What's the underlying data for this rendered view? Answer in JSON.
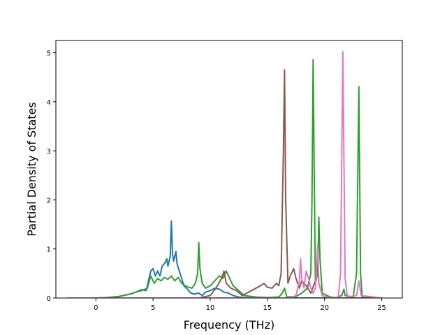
{
  "chart_data": {
    "type": "line",
    "title": "",
    "xlabel": "Frequency (THz)",
    "ylabel": "Partial Density of States",
    "xlim": [
      -3.5,
      26.8
    ],
    "ylim": [
      0,
      5.25
    ],
    "xticks": [
      0,
      5,
      10,
      15,
      20,
      25
    ],
    "yticks": [
      0,
      1,
      2,
      3,
      4,
      5
    ],
    "grid": false,
    "legend": "none",
    "series": [
      {
        "color": "#1f77b4",
        "points": [
          [
            -2.5,
            0
          ],
          [
            0,
            0
          ],
          [
            1,
            0.01
          ],
          [
            2,
            0.03
          ],
          [
            3,
            0.08
          ],
          [
            3.5,
            0.12
          ],
          [
            4,
            0.17
          ],
          [
            4.4,
            0.15
          ],
          [
            4.6,
            0.35
          ],
          [
            4.8,
            0.55
          ],
          [
            5.0,
            0.6
          ],
          [
            5.2,
            0.45
          ],
          [
            5.4,
            0.55
          ],
          [
            5.6,
            0.45
          ],
          [
            5.8,
            0.65
          ],
          [
            6.0,
            0.7
          ],
          [
            6.2,
            0.8
          ],
          [
            6.3,
            0.65
          ],
          [
            6.5,
            0.85
          ],
          [
            6.6,
            1.57
          ],
          [
            6.7,
            0.9
          ],
          [
            6.8,
            0.75
          ],
          [
            7.0,
            0.95
          ],
          [
            7.1,
            0.7
          ],
          [
            7.3,
            0.55
          ],
          [
            7.5,
            0.4
          ],
          [
            7.7,
            0.25
          ],
          [
            8.0,
            0.18
          ],
          [
            8.3,
            0.1
          ],
          [
            8.6,
            0.08
          ],
          [
            9.0,
            0.1
          ],
          [
            9.3,
            0.05
          ],
          [
            9.6,
            0.12
          ],
          [
            10.0,
            0.15
          ],
          [
            10.4,
            0.2
          ],
          [
            10.8,
            0.18
          ],
          [
            11.2,
            0.12
          ],
          [
            11.6,
            0.1
          ],
          [
            12.0,
            0.05
          ],
          [
            12.5,
            0.02
          ],
          [
            13.0,
            0.01
          ],
          [
            14.0,
            0
          ],
          [
            25.0,
            0
          ]
        ]
      },
      {
        "color": "#2ca02c",
        "points": [
          [
            -2.5,
            0
          ],
          [
            0,
            0
          ],
          [
            1,
            0.01
          ],
          [
            2,
            0.03
          ],
          [
            3,
            0.08
          ],
          [
            3.5,
            0.12
          ],
          [
            4,
            0.15
          ],
          [
            4.5,
            0.2
          ],
          [
            4.8,
            0.45
          ],
          [
            5.1,
            0.3
          ],
          [
            5.4,
            0.4
          ],
          [
            5.7,
            0.35
          ],
          [
            6.0,
            0.42
          ],
          [
            6.3,
            0.38
          ],
          [
            6.6,
            0.45
          ],
          [
            6.9,
            0.35
          ],
          [
            7.2,
            0.42
          ],
          [
            7.5,
            0.3
          ],
          [
            7.8,
            0.25
          ],
          [
            8.1,
            0.22
          ],
          [
            8.4,
            0.2
          ],
          [
            8.7,
            0.3
          ],
          [
            8.9,
            0.5
          ],
          [
            9.0,
            1.13
          ],
          [
            9.1,
            0.6
          ],
          [
            9.3,
            0.3
          ],
          [
            9.6,
            0.2
          ],
          [
            10.0,
            0.25
          ],
          [
            10.4,
            0.35
          ],
          [
            10.8,
            0.45
          ],
          [
            11.1,
            0.4
          ],
          [
            11.4,
            0.55
          ],
          [
            11.7,
            0.4
          ],
          [
            12.0,
            0.25
          ],
          [
            12.5,
            0.15
          ],
          [
            13.0,
            0.05
          ],
          [
            14.0,
            0.02
          ],
          [
            15.0,
            0.01
          ],
          [
            16.0,
            0.02
          ],
          [
            16.3,
            0.1
          ],
          [
            16.5,
            0.2
          ],
          [
            16.7,
            0.02
          ],
          [
            17.5,
            0.03
          ],
          [
            18.0,
            0.1
          ],
          [
            18.5,
            0.2
          ],
          [
            18.8,
            0.5
          ],
          [
            18.9,
            2.0
          ],
          [
            19.0,
            4.86
          ],
          [
            19.1,
            2.5
          ],
          [
            19.2,
            0.3
          ],
          [
            19.4,
            0.5
          ],
          [
            19.5,
            1.65
          ],
          [
            19.6,
            0.8
          ],
          [
            19.8,
            0.1
          ],
          [
            20.5,
            0.02
          ],
          [
            21.0,
            0.01
          ],
          [
            21.5,
            0.05
          ],
          [
            21.7,
            0.18
          ],
          [
            21.8,
            0.05
          ],
          [
            22.5,
            0.02
          ],
          [
            22.8,
            0.5
          ],
          [
            23.0,
            4.31
          ],
          [
            23.15,
            0.5
          ],
          [
            23.3,
            0.01
          ],
          [
            25.0,
            0
          ]
        ]
      },
      {
        "color": "#8c564b",
        "points": [
          [
            -2.5,
            0
          ],
          [
            9.0,
            0
          ],
          [
            10.0,
            0.05
          ],
          [
            10.5,
            0.2
          ],
          [
            11.0,
            0.4
          ],
          [
            11.2,
            0.55
          ],
          [
            11.4,
            0.3
          ],
          [
            11.8,
            0.2
          ],
          [
            12.3,
            0.15
          ],
          [
            12.8,
            0.05
          ],
          [
            13.2,
            0.1
          ],
          [
            13.6,
            0.15
          ],
          [
            14.0,
            0.2
          ],
          [
            14.4,
            0.25
          ],
          [
            14.7,
            0.3
          ],
          [
            15.0,
            0.22
          ],
          [
            15.4,
            0.2
          ],
          [
            15.8,
            0.3
          ],
          [
            16.0,
            0.25
          ],
          [
            16.2,
            0.5
          ],
          [
            16.4,
            3.0
          ],
          [
            16.5,
            4.65
          ],
          [
            16.6,
            2.0
          ],
          [
            16.8,
            0.3
          ],
          [
            17.0,
            0.45
          ],
          [
            17.3,
            0.6
          ],
          [
            17.5,
            0.4
          ],
          [
            17.8,
            0.2
          ],
          [
            18.0,
            0.35
          ],
          [
            18.4,
            0.25
          ],
          [
            18.8,
            0.1
          ],
          [
            19.2,
            0.35
          ],
          [
            19.4,
            0.8
          ],
          [
            19.5,
            0.3
          ],
          [
            19.8,
            0.05
          ],
          [
            20.5,
            0
          ],
          [
            25.0,
            0
          ]
        ]
      },
      {
        "color": "#e377c2",
        "points": [
          [
            -2.5,
            0
          ],
          [
            17.0,
            0
          ],
          [
            17.5,
            0.05
          ],
          [
            17.8,
            0.35
          ],
          [
            17.9,
            0.8
          ],
          [
            18.0,
            0.4
          ],
          [
            18.2,
            0.2
          ],
          [
            18.4,
            0.55
          ],
          [
            18.6,
            0.4
          ],
          [
            18.8,
            0.2
          ],
          [
            19.0,
            0.1
          ],
          [
            19.2,
            0.2
          ],
          [
            19.4,
            1.1
          ],
          [
            19.5,
            0.3
          ],
          [
            19.8,
            0.05
          ],
          [
            20.5,
            0
          ],
          [
            21.2,
            0.02
          ],
          [
            21.4,
            0.5
          ],
          [
            21.6,
            5.02
          ],
          [
            21.8,
            0.4
          ],
          [
            22.0,
            0.02
          ],
          [
            22.8,
            0.05
          ],
          [
            23.0,
            0.35
          ],
          [
            23.2,
            0.05
          ],
          [
            25.0,
            0
          ]
        ]
      }
    ]
  }
}
